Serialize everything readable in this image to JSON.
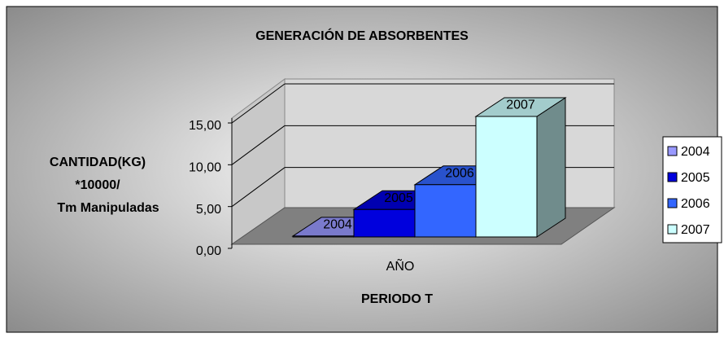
{
  "chart_data": {
    "type": "bar3d",
    "title": "GENERACIÓN DE ABSORBENTES",
    "ylabel": [
      "CANTIDAD(KG)",
      "*10000/",
      "Tm Manipuladas"
    ],
    "xlabel": "PERIODO T",
    "categories": [
      "AÑO"
    ],
    "series": [
      {
        "name": "2004",
        "color": "#9999ff",
        "values": [
          0.1
        ]
      },
      {
        "name": "2005",
        "color": "#0000dd",
        "values": [
          3.1
        ]
      },
      {
        "name": "2006",
        "color": "#3366ff",
        "values": [
          5.9
        ]
      },
      {
        "name": "2007",
        "color": "#ccffff",
        "values": [
          13.6
        ]
      }
    ],
    "ylim": [
      0,
      15
    ],
    "yticks": [
      {
        "value": 0,
        "label": "0,00"
      },
      {
        "value": 5,
        "label": "5,00"
      },
      {
        "value": 10,
        "label": "10,00"
      },
      {
        "value": 15,
        "label": "15,00"
      }
    ],
    "grid": true,
    "legend": "right"
  }
}
